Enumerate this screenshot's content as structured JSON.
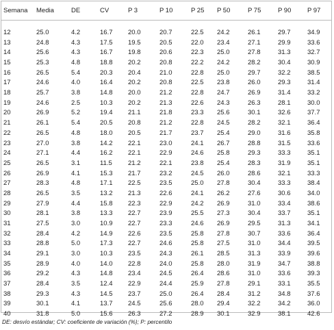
{
  "table": {
    "headers": [
      "Semana",
      "Media",
      "DE",
      "CV",
      "P 3",
      "P 10",
      "P 25",
      "P 50",
      "P 75",
      "P 90",
      "P 97"
    ],
    "rows": [
      [
        "12",
        "25.0",
        "4.2",
        "16.7",
        "20.0",
        "20.7",
        "22.5",
        "24.2",
        "26.1",
        "29.7",
        "34.9"
      ],
      [
        "13",
        "24.8",
        "4.3",
        "17.5",
        "19.5",
        "20.5",
        "22.0",
        "23.4",
        "27.1",
        "29.9",
        "33.6"
      ],
      [
        "14",
        "25.6",
        "4.3",
        "16.7",
        "19.8",
        "20.6",
        "22.3",
        "25.0",
        "27.8",
        "31.3",
        "32.7"
      ],
      [
        "15",
        "25.3",
        "4.8",
        "18.8",
        "20.2",
        "20.8",
        "22.2",
        "24.2",
        "28.2",
        "30.4",
        "30.9"
      ],
      [
        "16",
        "26.5",
        "5.4",
        "20.3",
        "20.4",
        "21.0",
        "22.8",
        "25.0",
        "29.7",
        "32.2",
        "38.5"
      ],
      [
        "17",
        "24.6",
        "4.0",
        "16.4",
        "20.2",
        "20.8",
        "22.5",
        "23.8",
        "26.0",
        "29.3",
        "31.4"
      ],
      [
        "18",
        "25.7",
        "3.8",
        "14.8",
        "20.0",
        "21.2",
        "22.8",
        "24.7",
        "26.9",
        "31.4",
        "33.2"
      ],
      [
        "19",
        "24.6",
        "2.5",
        "10.3",
        "20.2",
        "21.3",
        "22.6",
        "24.3",
        "26.3",
        "28.1",
        "30.0"
      ],
      [
        "20",
        "26.9",
        "5.2",
        "19.4",
        "21.1",
        "21.8",
        "23.3",
        "25.6",
        "30.1",
        "32.6",
        "37.7"
      ],
      [
        "21",
        "26.1",
        "5.4",
        "20.5",
        "20.8",
        "21.2",
        "22.8",
        "24.5",
        "28.2",
        "32.1",
        "36.4"
      ],
      [
        "22",
        "26.5",
        "4.8",
        "18.0",
        "20.5",
        "21.7",
        "23.7",
        "25.4",
        "29.0",
        "31.6",
        "35.8"
      ],
      [
        "23",
        "27.0",
        "3.8",
        "14.2",
        "22.1",
        "23.0",
        "24.1",
        "26.7",
        "28.8",
        "31.5",
        "33.6"
      ],
      [
        "24",
        "27.1",
        "4.4",
        "16.2",
        "22.1",
        "22.9",
        "24.6",
        "25.8",
        "29.3",
        "33.3",
        "35.1"
      ],
      [
        "25",
        "26.5",
        "3.1",
        "11.5",
        "21.2",
        "22.1",
        "23.8",
        "25.4",
        "28.3",
        "31.9",
        "35.1"
      ],
      [
        "26",
        "26.9",
        "4.1",
        "15.3",
        "21.7",
        "23.2",
        "24.5",
        "26.0",
        "28.6",
        "32.1",
        "33.3"
      ],
      [
        "27",
        "28.3",
        "4.8",
        "17.1",
        "22.5",
        "23.5",
        "25.0",
        "27.8",
        "30.4",
        "33.3",
        "38.4"
      ],
      [
        "28",
        "26.5",
        "3.5",
        "13.2",
        "21.3",
        "22.6",
        "24.1",
        "26.2",
        "27.6",
        "30.6",
        "34.0"
      ],
      [
        "29",
        "27.9",
        "4.4",
        "15.8",
        "22.3",
        "22.9",
        "24.2",
        "26.9",
        "31.0",
        "33.4",
        "38.6"
      ],
      [
        "30",
        "28.1",
        "3.8",
        "13.3",
        "22.7",
        "23.9",
        "25.5",
        "27.3",
        "30.4",
        "33.7",
        "35.1"
      ],
      [
        "31",
        "27.5",
        "3.0",
        "10.9",
        "22.7",
        "23.3",
        "24.6",
        "26.9",
        "29.5",
        "31.3",
        "34.1"
      ],
      [
        "32",
        "28.4",
        "4.2",
        "14.9",
        "22.6",
        "23.5",
        "25.8",
        "27.8",
        "30.7",
        "33.6",
        "36.4"
      ],
      [
        "33",
        "28.8",
        "5.0",
        "17.3",
        "22.7",
        "24.6",
        "25.8",
        "27.5",
        "31.0",
        "34.4",
        "39.5"
      ],
      [
        "34",
        "29.1",
        "3.0",
        "10.3",
        "23.5",
        "24.3",
        "26.1",
        "28.5",
        "31.3",
        "33.9",
        "39.6"
      ],
      [
        "35",
        "28.9",
        "4.0",
        "14.0",
        "22.8",
        "24.0",
        "25.8",
        "28.0",
        "31.9",
        "34.7",
        "38.8"
      ],
      [
        "36",
        "29.2",
        "4.3",
        "14.8",
        "23.4",
        "24.5",
        "26.4",
        "28.6",
        "31.0",
        "33.6",
        "39.3"
      ],
      [
        "37",
        "28.4",
        "3.5",
        "12.4",
        "22.9",
        "24.4",
        "25.9",
        "27.8",
        "29.1",
        "33.1",
        "35.5"
      ],
      [
        "38",
        "29.3",
        "4.3",
        "14.5",
        "23.7",
        "25.0",
        "26.4",
        "28.4",
        "31.2",
        "34.8",
        "37.6"
      ],
      [
        "39",
        "30.1",
        "4.1",
        "13.7",
        "24.5",
        "25.6",
        "28.0",
        "29.4",
        "32.2",
        "34.2",
        "36.0"
      ],
      [
        "40",
        "31.8",
        "5.0",
        "15.6",
        "26.3",
        "27.2",
        "28.9",
        "30.1",
        "32.9",
        "38.1",
        "42.6"
      ]
    ]
  },
  "footnote": "DE: desvío estándar; CV: coeficiente de variación (%); P: percentilo"
}
